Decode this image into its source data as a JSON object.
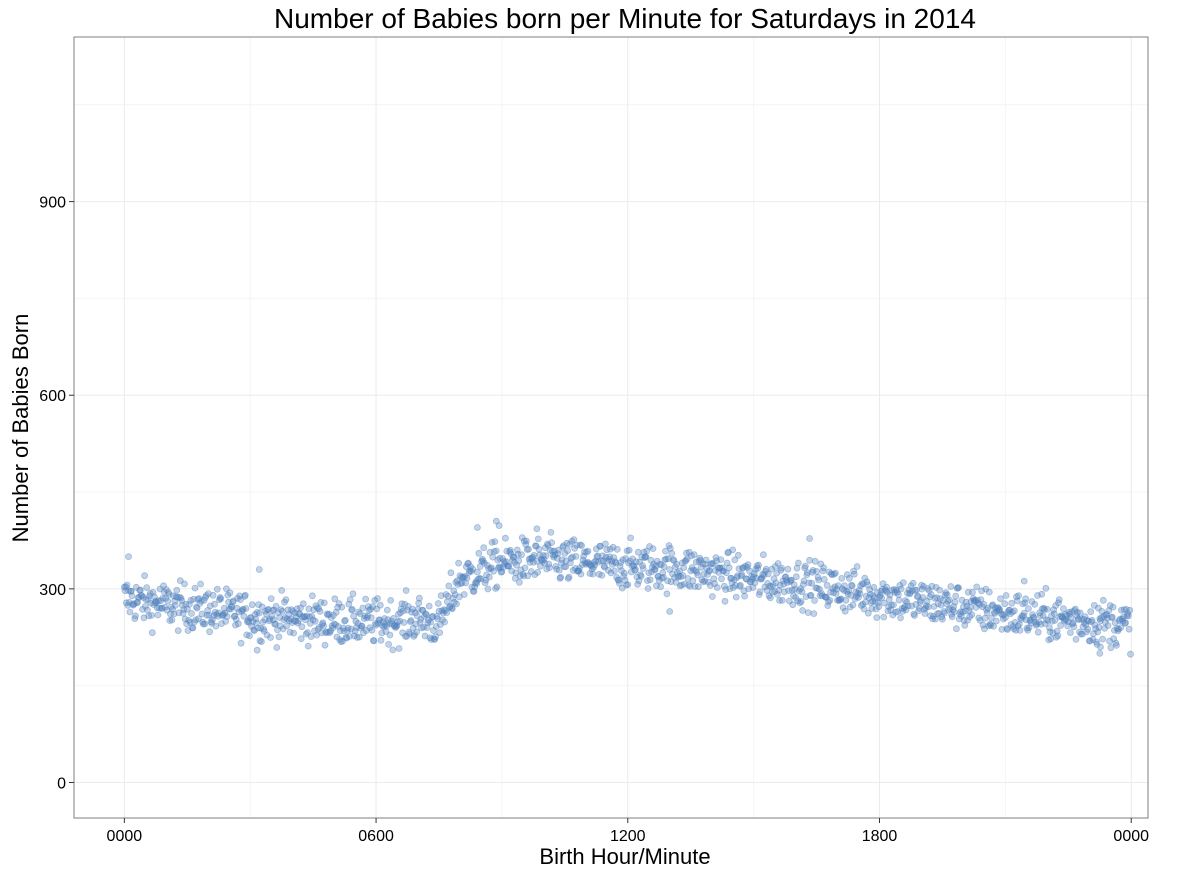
{
  "chart_data": {
    "type": "scatter",
    "title": "Number of Babies born per Minute for Saturdays in 2014",
    "xlabel": "Birth Hour/Minute",
    "ylabel": "Number of Babies Born",
    "x_unit": "minute of day",
    "xlim": [
      -72,
      1464
    ],
    "ylim": [
      -55,
      1155
    ],
    "x_ticks": [
      {
        "value": 0,
        "label": "0000"
      },
      {
        "value": 360,
        "label": "0600"
      },
      {
        "value": 720,
        "label": "1200"
      },
      {
        "value": 1080,
        "label": "1800"
      },
      {
        "value": 1440,
        "label": "0000"
      }
    ],
    "y_ticks": [
      {
        "value": 0,
        "label": "0"
      },
      {
        "value": 300,
        "label": "300"
      },
      {
        "value": 600,
        "label": "600"
      },
      {
        "value": 900,
        "label": "900"
      }
    ],
    "grid": true,
    "point_color": "#4f81bd",
    "point_opacity": 0.35,
    "profile": {
      "minutes": [
        0,
        60,
        120,
        180,
        240,
        300,
        360,
        390,
        420,
        450,
        480,
        540,
        600,
        660,
        720,
        780,
        840,
        900,
        960,
        1020,
        1080,
        1140,
        1200,
        1260,
        1320,
        1380,
        1440
      ],
      "mean": [
        285,
        275,
        268,
        258,
        253,
        250,
        248,
        250,
        255,
        245,
        315,
        340,
        345,
        340,
        335,
        333,
        325,
        315,
        310,
        300,
        290,
        280,
        272,
        262,
        255,
        250,
        245
      ],
      "spread": 25
    },
    "outliers": [
      {
        "x": 6,
        "y": 350
      },
      {
        "x": 193,
        "y": 330
      },
      {
        "x": 190,
        "y": 205
      },
      {
        "x": 532,
        "y": 405
      },
      {
        "x": 536,
        "y": 398
      },
      {
        "x": 505,
        "y": 395
      },
      {
        "x": 590,
        "y": 393
      },
      {
        "x": 780,
        "y": 265
      },
      {
        "x": 980,
        "y": 378
      },
      {
        "x": 1395,
        "y": 200
      },
      {
        "x": 1396,
        "y": 210
      },
      {
        "x": 1287,
        "y": 312
      }
    ]
  }
}
